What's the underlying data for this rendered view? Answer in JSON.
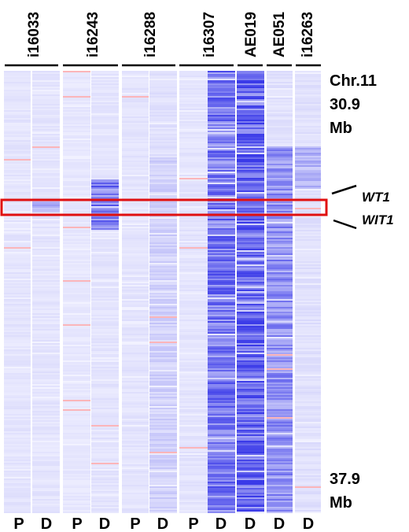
{
  "samples": [
    {
      "name": "i16033",
      "lanes": [
        "P",
        "D"
      ]
    },
    {
      "name": "i16243",
      "lanes": [
        "P",
        "D"
      ]
    },
    {
      "name": "i16288",
      "lanes": [
        "P",
        "D"
      ]
    },
    {
      "name": "i16307",
      "lanes": [
        "P",
        "D"
      ]
    },
    {
      "name": "AE019",
      "lanes": [
        "D"
      ]
    },
    {
      "name": "AE051",
      "lanes": [
        "D"
      ]
    },
    {
      "name": "i16263",
      "lanes": [
        "D"
      ]
    }
  ],
  "coordinates": {
    "top": {
      "chromosome": "Chr.11",
      "position": "30.9",
      "unit": "Mb"
    },
    "bottom": {
      "position": "37.9",
      "unit": "Mb"
    }
  },
  "genes": [
    "WT1",
    "WIT1"
  ],
  "colors": {
    "loss": "#3a3ae8",
    "gain": "#ff8a8a",
    "background": "#ffffff",
    "highlight_box": "#e01010"
  }
}
